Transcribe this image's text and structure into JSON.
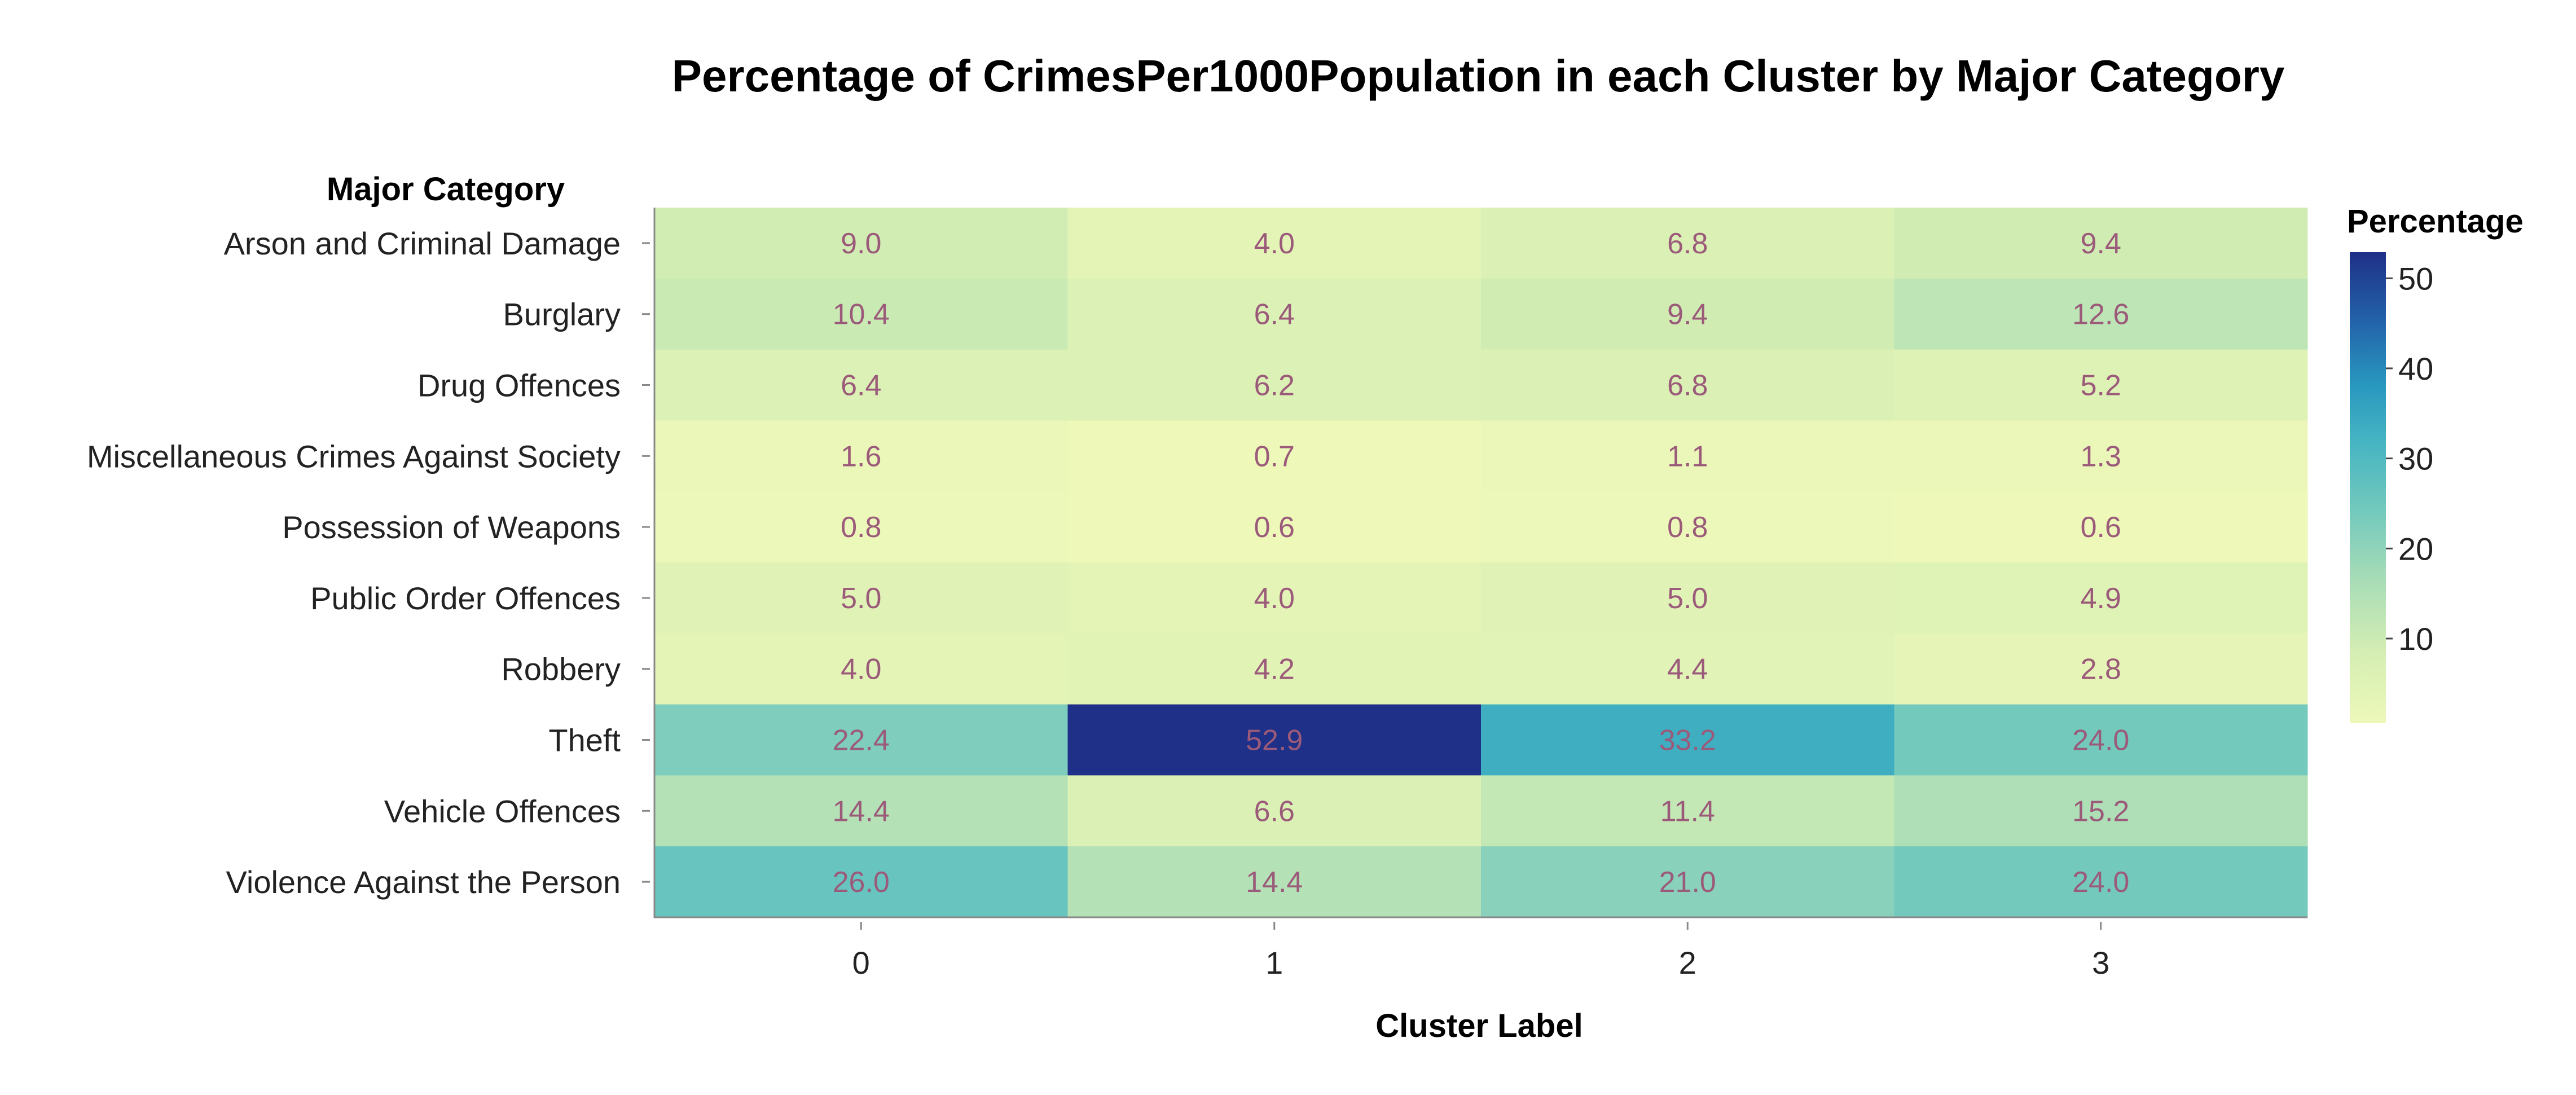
{
  "chart_data": {
    "type": "heatmap",
    "title": "Percentage of CrimesPer1000Population in each Cluster by Major Category",
    "xlabel": "Cluster Label",
    "ylabel": "Major Category",
    "x_categories": [
      "0",
      "1",
      "2",
      "3"
    ],
    "y_categories": [
      "Arson and Criminal Damage",
      "Burglary",
      "Drug Offences",
      "Miscellaneous Crimes Against Society",
      "Possession of Weapons",
      "Public Order Offences",
      "Robbery",
      "Theft",
      "Vehicle Offences",
      "Violence Against the Person"
    ],
    "values": [
      [
        9.0,
        4.0,
        6.8,
        9.4
      ],
      [
        10.4,
        6.4,
        9.4,
        12.6
      ],
      [
        6.4,
        6.2,
        6.8,
        5.2
      ],
      [
        1.6,
        0.7,
        1.1,
        1.3
      ],
      [
        0.8,
        0.6,
        0.8,
        0.6
      ],
      [
        5.0,
        4.0,
        5.0,
        4.9
      ],
      [
        4.0,
        4.2,
        4.4,
        2.8
      ],
      [
        22.4,
        52.9,
        33.2,
        24.0
      ],
      [
        14.4,
        6.6,
        11.4,
        15.2
      ],
      [
        26.0,
        14.4,
        21.0,
        24.0
      ]
    ],
    "colorscale": "YlGnBu",
    "colorbar": {
      "title": "Percentage",
      "range": [
        0.6,
        52.9
      ],
      "ticks": [
        10,
        20,
        30,
        40,
        50
      ]
    },
    "grid": false
  }
}
